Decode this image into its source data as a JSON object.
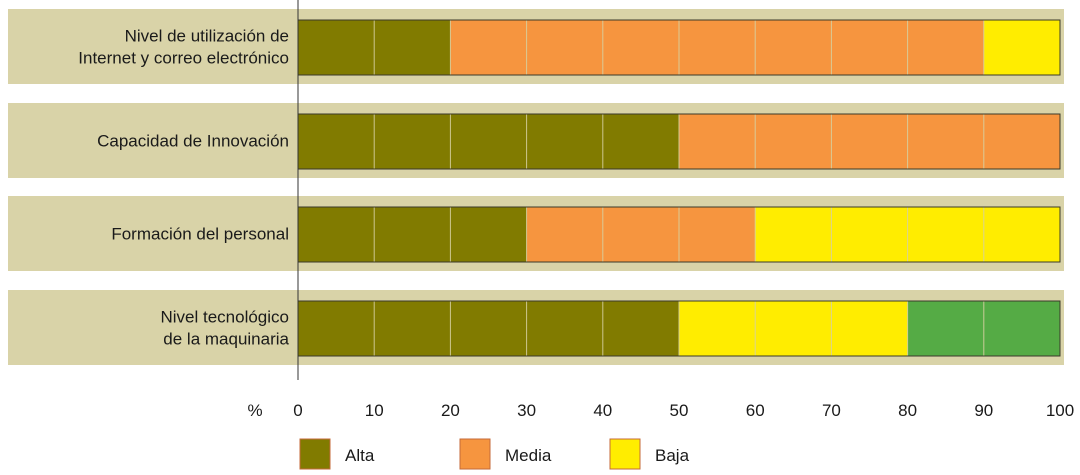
{
  "chart_data": {
    "type": "bar",
    "orientation": "horizontal",
    "stacked": true,
    "categories": [
      [
        "Nivel de utilización de",
        "Internet y correo electrónico"
      ],
      [
        "Capacidad de Innovación"
      ],
      [
        "Formación del personal"
      ],
      [
        "Nivel tecnológico",
        "de la maquinaria"
      ]
    ],
    "segments": [
      [
        {
          "series": "Alta",
          "value": 20
        },
        {
          "series": "Media",
          "value": 70
        },
        {
          "series": "Baja",
          "value": 10
        }
      ],
      [
        {
          "series": "Alta",
          "value": 50
        },
        {
          "series": "Media",
          "value": 50
        }
      ],
      [
        {
          "series": "Alta",
          "value": 30
        },
        {
          "series": "Media",
          "value": 30
        },
        {
          "series": "Baja",
          "value": 40
        }
      ],
      [
        {
          "series": "Alta",
          "value": 50
        },
        {
          "series": "Baja",
          "value": 30
        },
        {
          "series": "",
          "value": 20
        }
      ]
    ],
    "series": [
      {
        "name": "Alta",
        "color": "#817b00"
      },
      {
        "name": "Media",
        "color": "#f6953f"
      },
      {
        "name": "Baja",
        "color": "#ffed00"
      },
      {
        "name": "",
        "color": "#55ab45"
      }
    ],
    "legend": [
      "Alta",
      "Media",
      "Baja"
    ],
    "xlim": [
      0,
      100
    ],
    "xticks": [
      0,
      10,
      20,
      30,
      40,
      50,
      60,
      70,
      80,
      90,
      100
    ],
    "xunit_label": "%",
    "grid": true,
    "band_color": "#d9d3a8",
    "legend_position": "bottom"
  }
}
